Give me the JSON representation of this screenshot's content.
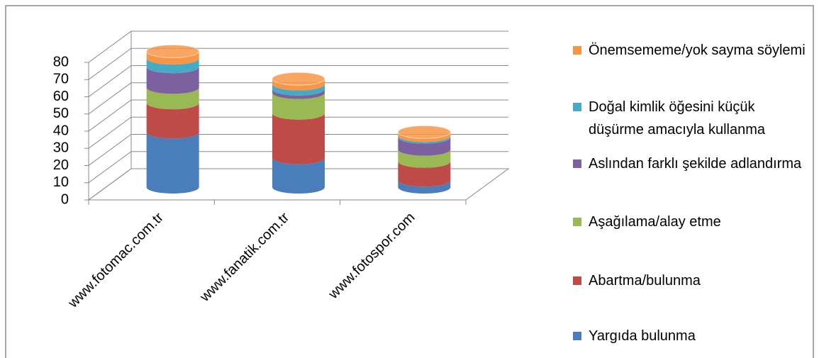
{
  "chart_data": {
    "type": "bar3d_stacked",
    "categories": [
      "www.fotomac.com.tr",
      "www.fanatik.com.tr",
      "www.fotospor.com"
    ],
    "series": [
      {
        "name": "Yargıda bulunma",
        "color": "#4a7ebb",
        "values": [
          32,
          17,
          4
        ]
      },
      {
        "name": "Abartma/bulunma",
        "color": "#be4b48",
        "values": [
          17,
          26,
          11
        ]
      },
      {
        "name": "Aşağılama/alay etme",
        "color": "#98b954",
        "values": [
          9,
          12,
          7
        ]
      },
      {
        "name": "Aslından farklı şekilde adlandırma",
        "color": "#7d60a0",
        "values": [
          12,
          2,
          7
        ]
      },
      {
        "name": "Doğal kimlik öğesini küçük düşürme amacıyla kullanma",
        "color": "#46aac5",
        "values": [
          5,
          3,
          1
        ]
      },
      {
        "name": "Önemsememe/yok sayma söylemi",
        "color": "#f79646",
        "values": [
          4,
          3,
          2
        ]
      }
    ],
    "ylim": [
      0,
      80
    ],
    "yticks": [
      0,
      10,
      20,
      30,
      40,
      50,
      60,
      70,
      80
    ],
    "grid": true
  }
}
